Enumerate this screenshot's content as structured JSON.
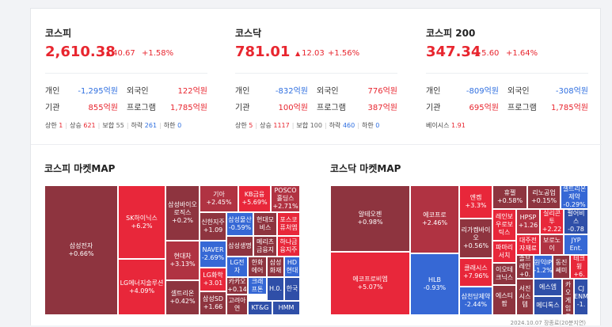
{
  "kospi": {
    "name": "코스피",
    "value": "2,610.38",
    "change": "40.67",
    "pct": "+1.58%",
    "personal_label": "개인",
    "personal": "-1,295억원",
    "foreign_label": "외국인",
    "foreign": "122억원",
    "inst_label": "기관",
    "inst": "855억원",
    "program_label": "프로그램",
    "program": "1,785억원",
    "upper_label": "상한",
    "upper": "1",
    "rise_label": "상승",
    "rise": "621",
    "flat_label": "보합",
    "flat": "55",
    "fall_label": "하락",
    "fall": "261",
    "lower_label": "하한",
    "lower": "0"
  },
  "kosdaq": {
    "name": "코스닥",
    "value": "781.01",
    "change": "12.03",
    "pct": "+1.56%",
    "personal_label": "개인",
    "personal": "-832억원",
    "foreign_label": "외국인",
    "foreign": "776억원",
    "inst_label": "기관",
    "inst": "100억원",
    "program_label": "프로그램",
    "program": "387억원",
    "upper_label": "상한",
    "upper": "5",
    "rise_label": "상승",
    "rise": "1117",
    "flat_label": "보합",
    "flat": "100",
    "fall_label": "하락",
    "fall": "460",
    "lower_label": "하한",
    "lower": "0"
  },
  "kospi200": {
    "name": "코스피 200",
    "value": "347.34",
    "change": "5.60",
    "pct": "+1.64%",
    "personal_label": "개인",
    "personal": "-809억원",
    "foreign_label": "외국인",
    "foreign": "-308억원",
    "inst_label": "기관",
    "inst": "695억원",
    "program_label": "프로그램",
    "program": "1,785억원",
    "basis_label": "베이시스",
    "basis": "1.91"
  },
  "map_kospi_title": "코스피 마켓MAP",
  "map_kosdaq_title": "코스닥 마켓MAP",
  "kospi_tiles": [
    {
      "l1": "삼성전자",
      "l2": "+0.66%"
    },
    {
      "l1": "SK하이닉스",
      "l2": "+6.2%"
    },
    {
      "l1": "LG에너지솔루션",
      "l2": "+4.09%"
    },
    {
      "l1": "삼성바이오로직스",
      "l2": "+0.2%"
    },
    {
      "l1": "현대차",
      "l2": "+3.13%"
    },
    {
      "l1": "셀트리온",
      "l2": "+0.42%"
    },
    {
      "l1": "기아",
      "l2": "+2.45%"
    },
    {
      "l1": "KB금융",
      "l2": "+5.69%"
    },
    {
      "l1": "POSCO홀딩스",
      "l2": "+2.71%"
    },
    {
      "l1": "신한지주",
      "l2": "+1.09"
    },
    {
      "l1": "삼성물산",
      "l2": "-0.59%"
    },
    {
      "l1": "현대모비스",
      "l2": ""
    },
    {
      "l1": "포스코퓨처엠",
      "l2": ""
    },
    {
      "l1": "NAVER",
      "l2": "-2.69%"
    },
    {
      "l1": "삼성생명",
      "l2": ""
    },
    {
      "l1": "메리츠금융지",
      "l2": ""
    },
    {
      "l1": "하나금융지주",
      "l2": ""
    },
    {
      "l1": "LG화학",
      "l2": "+3.01"
    },
    {
      "l1": "LG전자",
      "l2": ""
    },
    {
      "l1": "한화에어",
      "l2": ""
    },
    {
      "l1": "삼성화재",
      "l2": ""
    },
    {
      "l1": "HD현대",
      "l2": ""
    },
    {
      "l1": "카카오",
      "l2": "+0.14"
    },
    {
      "l1": "크래프톤",
      "l2": ""
    },
    {
      "l1": "H.0.",
      "l2": ""
    },
    {
      "l1": "한국",
      "l2": ""
    },
    {
      "l1": "삼성SD",
      "l2": "+1.66"
    },
    {
      "l1": "고려아연",
      "l2": ""
    },
    {
      "l1": "KT&G",
      "l2": ""
    },
    {
      "l1": "HMM",
      "l2": ""
    }
  ],
  "kosdaq_tiles": [
    {
      "l1": "알테오젠",
      "l2": "+0.98%"
    },
    {
      "l1": "에코프로비엠",
      "l2": "+5.07%"
    },
    {
      "l1": "에코프로",
      "l2": "+2.46%"
    },
    {
      "l1": "HLB",
      "l2": "-0.93%"
    },
    {
      "l1": "엔켐",
      "l2": "+3.3%"
    },
    {
      "l1": "리가켐바이오",
      "l2": "+0.56%"
    },
    {
      "l1": "클래시스",
      "l2": "+7.96%"
    },
    {
      "l1": "삼천당제약",
      "l2": "-2.44%"
    },
    {
      "l1": "휴젤",
      "l2": "+0.58%"
    },
    {
      "l1": "리노공업",
      "l2": "+0.15%"
    },
    {
      "l1": "셀트리온제약",
      "l2": "-0.29%"
    },
    {
      "l1": "레인보우로보틱스",
      "l2": ""
    },
    {
      "l1": "HPSP",
      "l2": "+1.26"
    },
    {
      "l1": "실리콘투",
      "l2": "+2.22"
    },
    {
      "l1": "펄어비스",
      "l2": "-0.78"
    },
    {
      "l1": "파마리서치",
      "l2": ""
    },
    {
      "l1": "대주전자재료",
      "l2": ""
    },
    {
      "l1": "보로노이",
      "l2": ""
    },
    {
      "l1": "JYP Ent.",
      "l2": ""
    },
    {
      "l1": "이오테크닉스",
      "l2": ""
    },
    {
      "l1": "솔브레인",
      "l2": "+0."
    },
    {
      "l1": "원익IP",
      "l2": "-1.2%"
    },
    {
      "l1": "동진쎄미",
      "l2": ""
    },
    {
      "l1": "테크윙",
      "l2": "+6."
    },
    {
      "l1": "에스엠",
      "l2": ""
    },
    {
      "l1": "에스티팜",
      "l2": ""
    },
    {
      "l1": "서진시스템",
      "l2": ""
    },
    {
      "l1": "에스엠",
      "l2": ""
    },
    {
      "l1": "메디톡스",
      "l2": ""
    },
    {
      "l1": "에이비",
      "l2": ""
    },
    {
      "l1": "카카오게임즈",
      "l2": ""
    },
    {
      "l1": "CJ ENM",
      "l2": "-1."
    }
  ],
  "date": "2024.10.07 장종료(20분지연)"
}
